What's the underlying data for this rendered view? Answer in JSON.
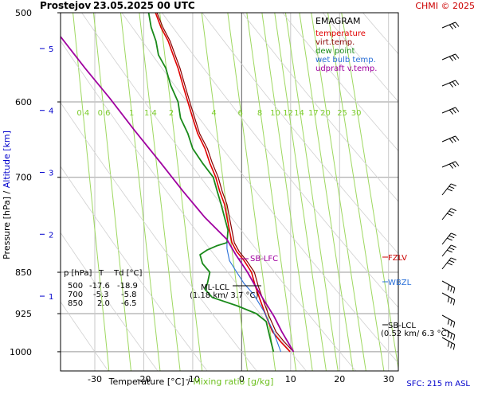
{
  "header": {
    "station": "Prostejov",
    "datetime": "23.05.2025 00 UTC",
    "credit": "CHMI © 2025"
  },
  "legend": {
    "title": "EMAGRAM",
    "items": [
      {
        "label": "temperature",
        "color": "#e00000"
      },
      {
        "label": "virt.temp.",
        "color": "#880000"
      },
      {
        "label": "dew point",
        "color": "#1a8a1a"
      },
      {
        "label": "wet bulb temp.",
        "color": "#2a70d8"
      },
      {
        "label": "udpraft v.temp.",
        "color": "#a000a0"
      }
    ]
  },
  "axes": {
    "ylabel_pressure": "Pressure [hPa]",
    "ylabel_sep": "/",
    "ylabel_altitude": "Altitude [km]",
    "xlabel_temp": "Temperature [°C]",
    "xlabel_sep": "/",
    "xlabel_mix": "Mixing ratio [g/kg]",
    "pressure_ticks": [
      "500",
      "600",
      "700",
      "850",
      "925",
      "1000"
    ],
    "temp_ticks": [
      "-30",
      "-20",
      "-10",
      "0",
      "10",
      "20",
      "30"
    ],
    "altitude_ticks": [
      "5",
      "4",
      "3",
      "2",
      "1"
    ],
    "mixing_ratio_labels": [
      "0.4",
      "0.6",
      "1",
      "1.4",
      "2",
      "4",
      "6",
      "8",
      "10",
      "12",
      "14",
      "17",
      "20",
      "25",
      "30"
    ]
  },
  "annotations": {
    "sb_lfc": "SB-LFC",
    "ml_lcl": "ML-LCL",
    "ml_lcl_detail": "(1.18 km/ 3.7 °C)",
    "sb_lcl": "SB-LCL",
    "sb_lcl_detail": "(0.52 km/ 6.3 °C)",
    "fzlv": "FZLV",
    "wbzl": "WBZL"
  },
  "table": {
    "header": [
      "p [hPa]",
      "T",
      "Td [°C]"
    ],
    "rows": [
      [
        "500",
        "-17.6",
        "-18.9"
      ],
      [
        "700",
        "-5.3",
        "-5.8"
      ],
      [
        "850",
        "2.0",
        "-6.5"
      ]
    ]
  },
  "footer": {
    "sfc": "SFC: 215 m ASL"
  },
  "chart_data": {
    "type": "line",
    "title": "EMAGRAM",
    "xlabel": "Temperature [°C] / Mixing ratio [g/kg]",
    "ylabel": "Pressure [hPa] / Altitude [km]",
    "xlim": [
      -37,
      32
    ],
    "ylim": [
      1040,
      500
    ],
    "y_scale": "log",
    "grid": true,
    "legend_position": "top-right",
    "series": [
      {
        "name": "temperature",
        "color": "#e00000",
        "points": [
          [
            9.9,
            1000
          ],
          [
            8,
            980
          ],
          [
            6.3,
            960
          ],
          [
            5,
            930
          ],
          [
            3.8,
            900
          ],
          [
            2.8,
            875
          ],
          [
            2,
            850
          ],
          [
            0.5,
            830
          ],
          [
            -1,
            815
          ],
          [
            -2,
            800
          ],
          [
            -2.5,
            780
          ],
          [
            -3,
            760
          ],
          [
            -3.5,
            740
          ],
          [
            -4.5,
            720
          ],
          [
            -5.3,
            700
          ],
          [
            -6.5,
            680
          ],
          [
            -7.5,
            660
          ],
          [
            -9,
            640
          ],
          [
            -10,
            620
          ],
          [
            -11,
            600
          ],
          [
            -12,
            580
          ],
          [
            -13,
            560
          ],
          [
            -14,
            545
          ],
          [
            -15,
            530
          ],
          [
            -16.5,
            515
          ],
          [
            -17.6,
            500
          ]
        ]
      },
      {
        "name": "virt.temp.",
        "color": "#880000",
        "points": [
          [
            10.6,
            1000
          ],
          [
            8.7,
            980
          ],
          [
            7,
            960
          ],
          [
            5.6,
            930
          ],
          [
            4.4,
            900
          ],
          [
            3.4,
            875
          ],
          [
            2.6,
            850
          ],
          [
            1,
            830
          ],
          [
            -0.5,
            815
          ],
          [
            -1.5,
            800
          ],
          [
            -2,
            780
          ],
          [
            -2.5,
            760
          ],
          [
            -3,
            740
          ],
          [
            -4,
            720
          ],
          [
            -4.8,
            700
          ],
          [
            -6,
            680
          ],
          [
            -7,
            660
          ],
          [
            -8.6,
            640
          ],
          [
            -9.6,
            620
          ],
          [
            -10.6,
            600
          ],
          [
            -11.6,
            580
          ],
          [
            -12.6,
            560
          ],
          [
            -13.6,
            545
          ],
          [
            -14.6,
            530
          ],
          [
            -16.1,
            515
          ],
          [
            -17.3,
            500
          ]
        ]
      },
      {
        "name": "dew point",
        "color": "#1a8a1a",
        "points": [
          [
            6.5,
            1000
          ],
          [
            6,
            980
          ],
          [
            5.5,
            960
          ],
          [
            5,
            940
          ],
          [
            3,
            925
          ],
          [
            -1,
            910
          ],
          [
            -6,
            895
          ],
          [
            -7.5,
            880
          ],
          [
            -7,
            870
          ],
          [
            -6.5,
            850
          ],
          [
            -8,
            835
          ],
          [
            -8.5,
            820
          ],
          [
            -7,
            812
          ],
          [
            -5,
            805
          ],
          [
            -3,
            800
          ],
          [
            -2.8,
            780
          ],
          [
            -3.5,
            760
          ],
          [
            -4.2,
            740
          ],
          [
            -5,
            720
          ],
          [
            -5.8,
            700
          ],
          [
            -8,
            680
          ],
          [
            -10,
            660
          ],
          [
            -11,
            640
          ],
          [
            -12.5,
            620
          ],
          [
            -13,
            600
          ],
          [
            -14.5,
            580
          ],
          [
            -15.5,
            560
          ],
          [
            -17,
            545
          ],
          [
            -17.5,
            530
          ],
          [
            -18.5,
            515
          ],
          [
            -19,
            500
          ]
        ]
      },
      {
        "name": "wet bulb temp.",
        "color": "#2a70d8",
        "points": [
          [
            8,
            1000
          ],
          [
            6.5,
            960
          ],
          [
            4.5,
            920
          ],
          [
            2.5,
            890
          ],
          [
            0.5,
            870
          ],
          [
            -1,
            850
          ],
          [
            -2.5,
            830
          ],
          [
            -3,
            810
          ],
          [
            -3,
            800
          ]
        ]
      },
      {
        "name": "udpraft v.temp.",
        "color": "#a000a0",
        "points": [
          [
            10.6,
            1000
          ],
          [
            8.2,
            960
          ],
          [
            6.6,
            930
          ],
          [
            4.2,
            895
          ],
          [
            2.5,
            870
          ],
          [
            1.2,
            850
          ],
          [
            -1.2,
            820
          ],
          [
            -3,
            795
          ],
          [
            -7.5,
            760
          ],
          [
            -12,
            720
          ],
          [
            -16.5,
            680
          ],
          [
            -22,
            635
          ],
          [
            -27,
            595
          ],
          [
            -32,
            560
          ],
          [
            -37,
            525
          ]
        ]
      }
    ]
  }
}
